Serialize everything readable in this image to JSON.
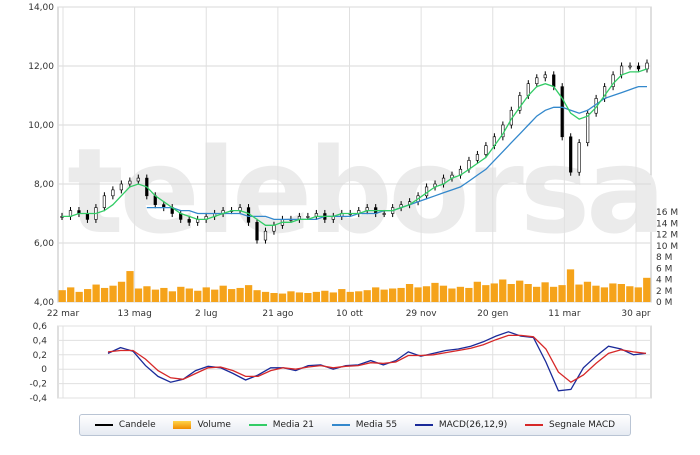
{
  "watermark": "teleborsa",
  "chart_data": [
    {
      "type": "line",
      "title": "",
      "price_ylim": [
        4,
        14
      ],
      "price_ticks": [
        "4,00",
        "6,00",
        "8,00",
        "10,00",
        "12,00",
        "14,00"
      ],
      "volume_ticks": [
        "0 M",
        "2 M",
        "4 M",
        "6 M",
        "8 M",
        "10 M",
        "12 M",
        "14 M",
        "16 M"
      ],
      "volume_ylim": [
        0,
        16
      ],
      "x_tick_labels": [
        "22 mar",
        "13 mag",
        "2 lug",
        "21 ago",
        "10 ott",
        "29 nov",
        "20 gen",
        "11 mar",
        "30 apr"
      ],
      "grid": true,
      "series": [
        {
          "name": "Candele",
          "color": "#000000",
          "close_values": [
            6.9,
            7.1,
            7.0,
            6.8,
            7.2,
            7.6,
            7.8,
            8.0,
            8.1,
            8.2,
            7.6,
            7.3,
            7.2,
            7.0,
            6.8,
            6.7,
            6.8,
            6.9,
            7.0,
            7.1,
            7.1,
            7.2,
            6.7,
            6.1,
            6.4,
            6.6,
            6.8,
            6.8,
            6.9,
            6.9,
            7.0,
            6.8,
            6.9,
            7.0,
            7.0,
            7.1,
            7.2,
            7.0,
            7.0,
            7.2,
            7.3,
            7.4,
            7.6,
            7.9,
            8.0,
            8.2,
            8.3,
            8.5,
            8.8,
            9.0,
            9.3,
            9.6,
            10.0,
            10.5,
            11.0,
            11.4,
            11.6,
            11.7,
            11.3,
            9.6,
            8.4,
            9.4,
            10.4,
            10.9,
            11.3,
            11.7,
            12.0,
            12.0,
            11.9,
            12.1
          ]
        },
        {
          "name": "Media 21",
          "color": "#33cc66",
          "values": [
            6.9,
            6.9,
            7.0,
            7.0,
            7.0,
            7.1,
            7.3,
            7.6,
            7.9,
            8.0,
            7.9,
            7.6,
            7.4,
            7.2,
            7.0,
            6.9,
            6.8,
            6.8,
            6.9,
            7.0,
            7.1,
            7.1,
            7.0,
            6.8,
            6.6,
            6.6,
            6.7,
            6.7,
            6.8,
            6.8,
            6.9,
            6.9,
            6.9,
            7.0,
            7.0,
            7.0,
            7.1,
            7.1,
            7.1,
            7.1,
            7.2,
            7.3,
            7.5,
            7.7,
            7.9,
            8.0,
            8.2,
            8.3,
            8.5,
            8.7,
            8.9,
            9.3,
            9.7,
            10.2,
            10.6,
            11.0,
            11.3,
            11.4,
            11.3,
            10.9,
            10.4,
            10.2,
            10.3,
            10.6,
            11.0,
            11.4,
            11.7,
            11.8,
            11.8,
            11.9
          ]
        },
        {
          "name": "Media 55",
          "color": "#3388cc",
          "values": [
            null,
            null,
            null,
            null,
            null,
            null,
            null,
            null,
            null,
            null,
            7.2,
            7.2,
            7.2,
            7.2,
            7.1,
            7.1,
            7.0,
            7.0,
            7.0,
            7.0,
            7.0,
            7.0,
            6.9,
            6.9,
            6.9,
            6.8,
            6.8,
            6.8,
            6.8,
            6.8,
            6.8,
            6.9,
            6.9,
            6.9,
            6.9,
            7.0,
            7.0,
            7.0,
            7.1,
            7.1,
            7.2,
            7.3,
            7.4,
            7.5,
            7.6,
            7.7,
            7.8,
            7.9,
            8.1,
            8.3,
            8.5,
            8.8,
            9.1,
            9.4,
            9.7,
            10.0,
            10.3,
            10.5,
            10.6,
            10.6,
            10.5,
            10.4,
            10.5,
            10.7,
            10.9,
            11.0,
            11.1,
            11.2,
            11.3,
            11.3
          ]
        },
        {
          "name": "Volume",
          "color": "#f5a31a",
          "values": [
            2.1,
            2.6,
            1.8,
            2.3,
            3.1,
            2.5,
            2.9,
            3.6,
            5.5,
            2.4,
            2.8,
            2.2,
            2.5,
            1.9,
            2.7,
            2.4,
            2.0,
            2.6,
            2.2,
            2.9,
            2.3,
            2.5,
            3.0,
            2.1,
            1.8,
            1.6,
            1.5,
            1.9,
            1.7,
            1.6,
            1.8,
            2.0,
            1.7,
            2.3,
            1.8,
            1.9,
            2.1,
            2.6,
            2.2,
            2.4,
            2.5,
            3.2,
            2.6,
            2.8,
            3.4,
            2.9,
            2.4,
            2.7,
            2.5,
            3.6,
            3.0,
            3.3,
            4.0,
            3.2,
            3.8,
            3.2,
            2.7,
            3.5,
            2.7,
            3.0,
            5.8,
            3.1,
            3.6,
            2.9,
            2.6,
            3.3,
            3.2,
            2.8,
            2.6,
            4.3
          ]
        }
      ]
    },
    {
      "type": "line",
      "title": "",
      "ylim": [
        -0.4,
        0.6
      ],
      "y_ticks": [
        "0,6",
        "0,4",
        "0,2",
        "0",
        "-0,2",
        "-0,4"
      ],
      "grid": true,
      "series": [
        {
          "name": "MACD(26,12,9)",
          "color": "#1a2a99",
          "values": [
            0.22,
            0.3,
            0.25,
            0.05,
            -0.1,
            -0.18,
            -0.14,
            -0.02,
            0.04,
            0.02,
            -0.06,
            -0.15,
            -0.08,
            0.02,
            0.02,
            -0.02,
            0.05,
            0.06,
            0.0,
            0.05,
            0.06,
            0.12,
            0.06,
            0.12,
            0.24,
            0.18,
            0.22,
            0.26,
            0.28,
            0.32,
            0.38,
            0.46,
            0.52,
            0.46,
            0.44,
            0.1,
            -0.3,
            -0.28,
            0.02,
            0.18,
            0.32,
            0.28,
            0.2,
            0.22
          ]
        },
        {
          "name": "Segnale MACD",
          "color": "#d62828",
          "values": [
            0.24,
            0.26,
            0.26,
            0.14,
            -0.02,
            -0.12,
            -0.14,
            -0.06,
            0.02,
            0.03,
            -0.02,
            -0.1,
            -0.1,
            -0.02,
            0.02,
            0.0,
            0.03,
            0.05,
            0.02,
            0.04,
            0.05,
            0.09,
            0.08,
            0.1,
            0.19,
            0.19,
            0.2,
            0.23,
            0.26,
            0.29,
            0.34,
            0.41,
            0.47,
            0.47,
            0.45,
            0.28,
            -0.04,
            -0.18,
            -0.08,
            0.08,
            0.22,
            0.27,
            0.24,
            0.22
          ]
        }
      ]
    }
  ],
  "legend": [
    {
      "label": "Candele",
      "color": "#000000",
      "kind": "line"
    },
    {
      "label": "Volume",
      "color": "#f5a31a",
      "kind": "bar"
    },
    {
      "label": "Media 21",
      "color": "#33cc66",
      "kind": "line"
    },
    {
      "label": "Media 55",
      "color": "#3388cc",
      "kind": "line"
    },
    {
      "label": "MACD(26,12,9)",
      "color": "#1a2a99",
      "kind": "line"
    },
    {
      "label": "Segnale MACD",
      "color": "#d62828",
      "kind": "line"
    }
  ]
}
